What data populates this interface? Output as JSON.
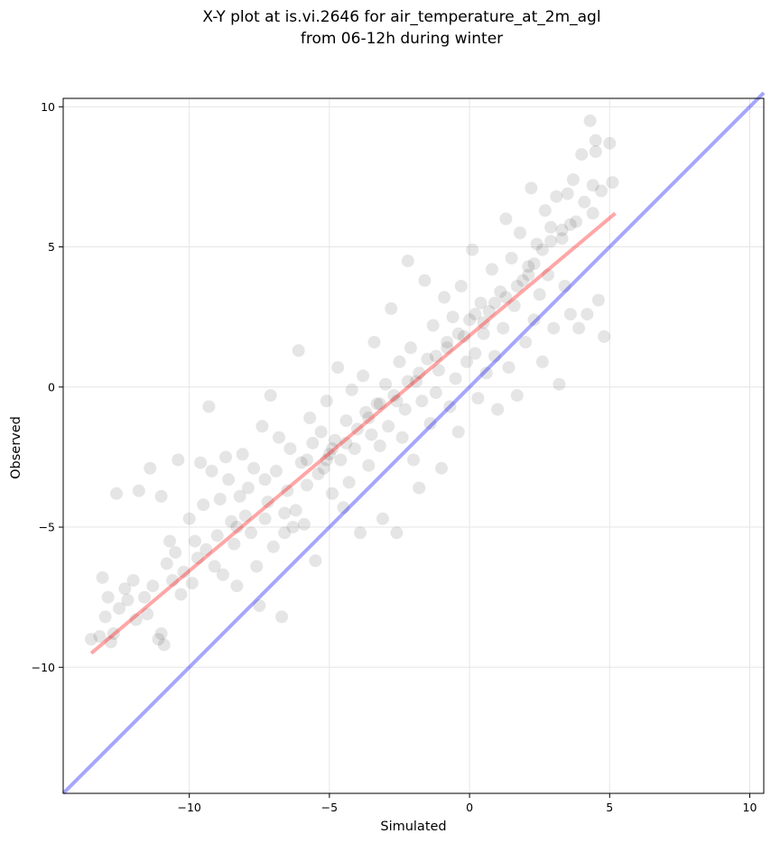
{
  "chart_data": {
    "type": "scatter",
    "title_line1": "X-Y plot at is.vi.2646 for air_temperature_at_2m_agl",
    "title_line2": "from 06-12h during winter",
    "xlabel": "Simulated",
    "ylabel": "Observed",
    "xlim": [
      -14.5,
      10.5
    ],
    "ylim": [
      -14.5,
      10.3
    ],
    "xticks": [
      -10,
      -5,
      0,
      5,
      10
    ],
    "yticks": [
      -10,
      -5,
      0,
      5,
      10
    ],
    "xtick_labels": [
      "−10",
      "−5",
      "0",
      "5",
      "10"
    ],
    "ytick_labels": [
      "−10",
      "−5",
      "0",
      "5",
      "10"
    ],
    "grid": true,
    "point_color": "#000000",
    "identity_line": {
      "x": [
        -14.5,
        10.5
      ],
      "y": [
        -14.5,
        10.5
      ],
      "color": "#0000ff"
    },
    "regression_line": {
      "x": [
        -13.5,
        5.2
      ],
      "y": [
        -9.5,
        6.2
      ],
      "color": "#ff0000"
    },
    "series": [
      {
        "points": [
          [
            -13.5,
            -9.0
          ],
          [
            -13.2,
            -8.9
          ],
          [
            -13.0,
            -8.2
          ],
          [
            -12.8,
            -9.1
          ],
          [
            -12.7,
            -8.8
          ],
          [
            -12.6,
            -3.8
          ],
          [
            -13.1,
            -6.8
          ],
          [
            -12.9,
            -7.5
          ],
          [
            -12.5,
            -7.9
          ],
          [
            -12.3,
            -7.2
          ],
          [
            -12.0,
            -6.9
          ],
          [
            -11.8,
            -3.7
          ],
          [
            -11.6,
            -7.5
          ],
          [
            -11.5,
            -8.1
          ],
          [
            -11.4,
            -2.9
          ],
          [
            -11.3,
            -7.1
          ],
          [
            -11.1,
            -9.0
          ],
          [
            -11.0,
            -8.8
          ],
          [
            -10.9,
            -9.2
          ],
          [
            -11.0,
            -3.9
          ],
          [
            -10.8,
            -6.3
          ],
          [
            -10.7,
            -5.5
          ],
          [
            -10.6,
            -6.9
          ],
          [
            -10.4,
            -2.6
          ],
          [
            -10.3,
            -7.4
          ],
          [
            -10.2,
            -6.6
          ],
          [
            -10.0,
            -4.7
          ],
          [
            -9.9,
            -7.0
          ],
          [
            -9.8,
            -5.5
          ],
          [
            -9.7,
            -6.1
          ],
          [
            -9.6,
            -2.7
          ],
          [
            -9.5,
            -4.2
          ],
          [
            -9.4,
            -5.8
          ],
          [
            -9.3,
            -0.7
          ],
          [
            -9.2,
            -3.0
          ],
          [
            -9.0,
            -5.3
          ],
          [
            -8.9,
            -4.0
          ],
          [
            -8.8,
            -6.7
          ],
          [
            -8.7,
            -2.5
          ],
          [
            -8.6,
            -3.3
          ],
          [
            -8.5,
            -4.8
          ],
          [
            -8.4,
            -5.6
          ],
          [
            -8.3,
            -7.1
          ],
          [
            -8.2,
            -3.9
          ],
          [
            -8.1,
            -2.4
          ],
          [
            -8.0,
            -4.6
          ],
          [
            -7.9,
            -3.6
          ],
          [
            -7.8,
            -5.2
          ],
          [
            -7.7,
            -2.9
          ],
          [
            -7.6,
            -6.4
          ],
          [
            -7.5,
            -7.8
          ],
          [
            -7.4,
            -1.4
          ],
          [
            -7.3,
            -3.3
          ],
          [
            -7.2,
            -4.1
          ],
          [
            -7.1,
            -0.3
          ],
          [
            -7.0,
            -5.7
          ],
          [
            -6.9,
            -3.0
          ],
          [
            -6.8,
            -1.8
          ],
          [
            -6.7,
            -8.2
          ],
          [
            -6.6,
            -4.5
          ],
          [
            -6.5,
            -3.7
          ],
          [
            -6.4,
            -2.2
          ],
          [
            -6.3,
            -5.0
          ],
          [
            -6.2,
            -4.4
          ],
          [
            -6.1,
            1.3
          ],
          [
            -6.0,
            -2.7
          ],
          [
            -5.9,
            -4.9
          ],
          [
            -5.8,
            -3.5
          ],
          [
            -5.7,
            -1.1
          ],
          [
            -5.6,
            -2.0
          ],
          [
            -5.5,
            -6.2
          ],
          [
            -5.4,
            -3.1
          ],
          [
            -5.3,
            -1.6
          ],
          [
            -5.2,
            -2.9
          ],
          [
            -5.1,
            -0.5
          ],
          [
            -5.0,
            -2.4
          ],
          [
            -4.9,
            -3.8
          ],
          [
            -4.8,
            -1.9
          ],
          [
            -4.7,
            0.7
          ],
          [
            -4.6,
            -2.6
          ],
          [
            -4.5,
            -4.3
          ],
          [
            -4.4,
            -1.2
          ],
          [
            -4.3,
            -3.4
          ],
          [
            -4.2,
            -0.1
          ],
          [
            -4.1,
            -2.2
          ],
          [
            -4.0,
            -1.5
          ],
          [
            -3.9,
            -5.2
          ],
          [
            -3.8,
            0.4
          ],
          [
            -3.7,
            -0.9
          ],
          [
            -3.6,
            -2.8
          ],
          [
            -3.5,
            -1.7
          ],
          [
            -3.4,
            1.6
          ],
          [
            -3.3,
            -0.6
          ],
          [
            -3.2,
            -2.1
          ],
          [
            -3.1,
            -4.7
          ],
          [
            -3.0,
            0.1
          ],
          [
            -2.9,
            -1.4
          ],
          [
            -2.8,
            2.8
          ],
          [
            -2.7,
            -0.3
          ],
          [
            -2.6,
            -5.2
          ],
          [
            -2.5,
            0.9
          ],
          [
            -2.4,
            -1.8
          ],
          [
            -2.3,
            -0.8
          ],
          [
            -2.2,
            4.5
          ],
          [
            -2.1,
            1.4
          ],
          [
            -2.0,
            -2.6
          ],
          [
            -1.9,
            0.2
          ],
          [
            -1.8,
            -3.6
          ],
          [
            -1.7,
            -0.5
          ],
          [
            -1.6,
            3.8
          ],
          [
            -1.5,
            1.0
          ],
          [
            -1.4,
            -1.3
          ],
          [
            -1.3,
            2.2
          ],
          [
            -1.2,
            -0.2
          ],
          [
            -1.1,
            0.6
          ],
          [
            -1.0,
            -2.9
          ],
          [
            -0.9,
            3.2
          ],
          [
            -0.8,
            1.4
          ],
          [
            -0.7,
            -0.7
          ],
          [
            -0.6,
            2.5
          ],
          [
            -0.5,
            0.3
          ],
          [
            -0.4,
            -1.6
          ],
          [
            -0.3,
            3.6
          ],
          [
            -0.2,
            1.8
          ],
          [
            -0.1,
            0.9
          ],
          [
            0.0,
            2.4
          ],
          [
            0.1,
            4.9
          ],
          [
            0.2,
            1.2
          ],
          [
            0.3,
            -0.4
          ],
          [
            0.4,
            3.0
          ],
          [
            0.5,
            1.9
          ],
          [
            0.6,
            0.5
          ],
          [
            0.7,
            2.7
          ],
          [
            0.8,
            4.2
          ],
          [
            0.9,
            1.1
          ],
          [
            1.0,
            -0.8
          ],
          [
            1.1,
            3.4
          ],
          [
            1.2,
            2.1
          ],
          [
            1.3,
            6.0
          ],
          [
            1.4,
            0.7
          ],
          [
            1.5,
            4.6
          ],
          [
            1.6,
            2.9
          ],
          [
            1.7,
            -0.3
          ],
          [
            1.8,
            5.5
          ],
          [
            1.9,
            3.8
          ],
          [
            2.0,
            1.6
          ],
          [
            2.1,
            4.3
          ],
          [
            2.2,
            7.1
          ],
          [
            2.3,
            2.4
          ],
          [
            2.4,
            5.1
          ],
          [
            2.5,
            3.3
          ],
          [
            2.6,
            0.9
          ],
          [
            2.7,
            6.3
          ],
          [
            2.8,
            4.0
          ],
          [
            2.9,
            5.7
          ],
          [
            3.0,
            2.1
          ],
          [
            3.1,
            6.8
          ],
          [
            3.2,
            0.1
          ],
          [
            3.3,
            5.3
          ],
          [
            3.4,
            3.6
          ],
          [
            3.5,
            6.9
          ],
          [
            3.6,
            2.6
          ],
          [
            3.7,
            7.4
          ],
          [
            3.8,
            5.9
          ],
          [
            3.9,
            2.1
          ],
          [
            4.0,
            8.3
          ],
          [
            4.1,
            6.6
          ],
          [
            4.2,
            2.6
          ],
          [
            4.3,
            9.5
          ],
          [
            4.4,
            7.2
          ],
          [
            4.5,
            8.8
          ],
          [
            4.6,
            3.1
          ],
          [
            4.7,
            7.0
          ],
          [
            4.8,
            1.8
          ],
          [
            5.0,
            8.7
          ],
          [
            5.1,
            7.3
          ],
          [
            -12.2,
            -7.6
          ],
          [
            -11.9,
            -8.3
          ],
          [
            -10.5,
            -5.9
          ],
          [
            -9.1,
            -6.4
          ],
          [
            -8.3,
            -5.0
          ],
          [
            -7.3,
            -4.7
          ],
          [
            -6.6,
            -5.2
          ],
          [
            -5.8,
            -2.6
          ],
          [
            -5.1,
            -2.6
          ],
          [
            -4.9,
            -2.2
          ],
          [
            -4.4,
            -2.0
          ],
          [
            -3.6,
            -1.1
          ],
          [
            -3.2,
            -0.6
          ],
          [
            -2.6,
            -0.5
          ],
          [
            -2.2,
            0.2
          ],
          [
            -1.8,
            0.5
          ],
          [
            -1.2,
            1.1
          ],
          [
            -0.8,
            1.6
          ],
          [
            -0.4,
            1.9
          ],
          [
            0.2,
            2.6
          ],
          [
            0.5,
            2.3
          ],
          [
            0.9,
            3.0
          ],
          [
            1.3,
            3.2
          ],
          [
            1.7,
            3.6
          ],
          [
            2.1,
            4.0
          ],
          [
            2.3,
            4.4
          ],
          [
            2.6,
            4.9
          ],
          [
            2.9,
            5.2
          ],
          [
            3.3,
            5.6
          ],
          [
            3.6,
            5.8
          ],
          [
            4.4,
            6.2
          ],
          [
            4.5,
            8.4
          ]
        ]
      }
    ]
  }
}
